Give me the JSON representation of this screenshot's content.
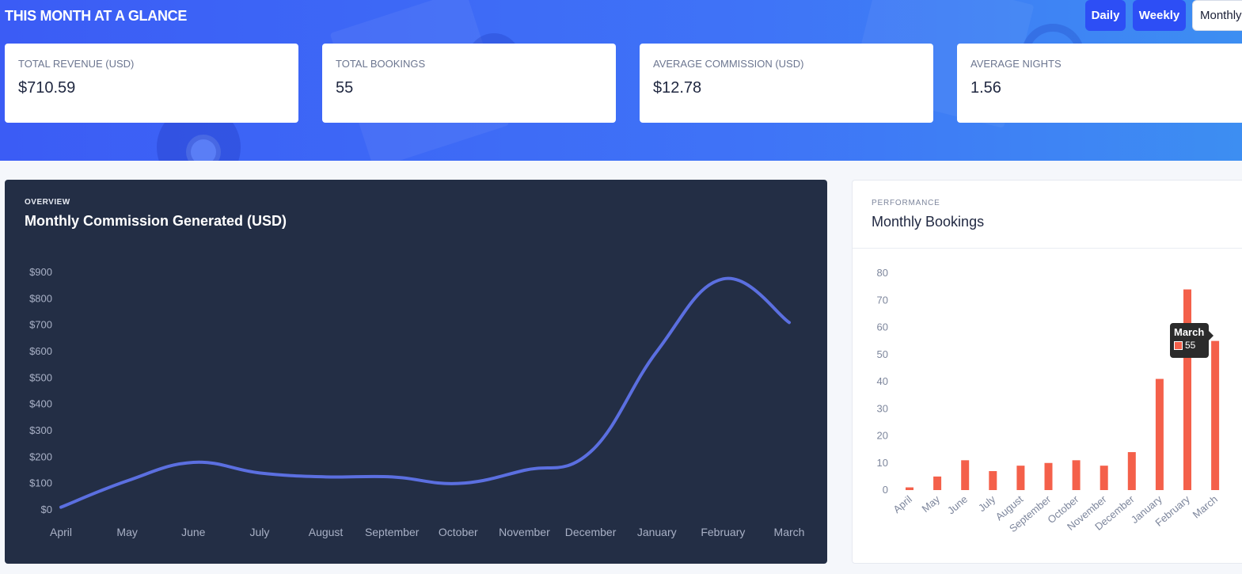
{
  "hero": {
    "title": "THIS MONTH AT A GLANCE",
    "periods": {
      "daily": "Daily",
      "weekly": "Weekly",
      "monthly": "Monthly"
    },
    "stats": [
      {
        "label": "TOTAL REVENUE (USD)",
        "value": "$710.59"
      },
      {
        "label": "TOTAL BOOKINGS",
        "value": "55"
      },
      {
        "label": "AVERAGE COMMISSION (USD)",
        "value": "$12.78"
      },
      {
        "label": "AVERAGE NIGHTS",
        "value": "1.56"
      }
    ]
  },
  "commission_panel": {
    "eyebrow": "OVERVIEW",
    "title": "Monthly Commission Generated (USD)"
  },
  "bookings_panel": {
    "eyebrow": "PERFORMANCE",
    "title": "Monthly Bookings"
  },
  "tooltip": {
    "title": "March",
    "value": "55"
  },
  "colors": {
    "line": "#5b6fe0",
    "bar": "#f4604a",
    "hero": "#3f6ff6",
    "dark_panel": "#232e45"
  },
  "chart_data": [
    {
      "type": "line",
      "title": "Monthly Commission Generated (USD)",
      "categories": [
        "April",
        "May",
        "June",
        "July",
        "August",
        "September",
        "October",
        "November",
        "December",
        "January",
        "February",
        "March"
      ],
      "ytick_labels": [
        "$0",
        "$100",
        "$200",
        "$300",
        "$400",
        "$500",
        "$600",
        "$700",
        "$800",
        "$900"
      ],
      "series": [
        {
          "values": [
            10,
            110,
            180,
            140,
            125,
            125,
            100,
            150,
            220,
            600,
            875,
            710
          ]
        }
      ],
      "ylim": [
        0,
        900
      ],
      "grid": false
    },
    {
      "type": "bar",
      "title": "Monthly Bookings",
      "categories": [
        "April",
        "May",
        "June",
        "July",
        "August",
        "September",
        "October",
        "November",
        "December",
        "January",
        "February",
        "March"
      ],
      "ytick_labels": [
        "0",
        "10",
        "20",
        "30",
        "40",
        "50",
        "60",
        "70",
        "80"
      ],
      "series": [
        {
          "values": [
            1,
            5,
            11,
            7,
            9,
            10,
            11,
            9,
            14,
            41,
            74,
            55
          ]
        }
      ],
      "ylim": [
        0,
        80
      ],
      "grid": false
    }
  ]
}
